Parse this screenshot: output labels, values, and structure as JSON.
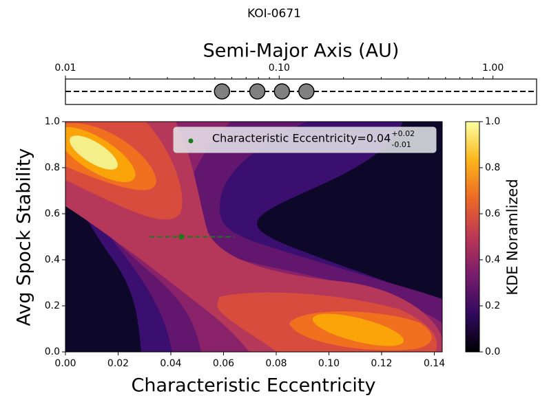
{
  "chart_data": [
    {
      "type": "scatter",
      "title": "KOI-0671",
      "xlabel": "Semi-Major Axis (AU)",
      "x": [
        0.054,
        0.079,
        0.103,
        0.134
      ],
      "color": "#808080",
      "log_x": true,
      "xlim": [
        0.01,
        1.6
      ],
      "xticks": [
        0.01,
        {
          "value": 0.1,
          "label": "0.10"
        },
        {
          "value": 1,
          "label": "1.00"
        }
      ],
      "xminorticks": [
        0.02,
        0.03,
        0.04,
        0.05,
        0.06,
        0.07,
        0.08,
        0.09,
        0.2,
        0.3,
        0.4,
        0.5,
        0.6,
        0.7,
        0.8,
        0.9
      ]
    },
    {
      "type": "contour",
      "xlabel": "Characteristic Eccentricity",
      "ylabel": "Avg Spock Stability",
      "xlim": [
        0,
        0.143
      ],
      "ylim": [
        0,
        1
      ],
      "xticks": [
        {
          "value": 0,
          "label": "0.00"
        },
        {
          "value": 0.02,
          "label": "0.02"
        },
        {
          "value": 0.04,
          "label": "0.04"
        },
        {
          "value": 0.06,
          "label": "0.06"
        },
        {
          "value": 0.08,
          "label": "0.08"
        },
        {
          "value": 0.1,
          "label": "0.10"
        },
        {
          "value": 0.12,
          "label": "0.12"
        },
        {
          "value": 0.14,
          "label": "0.14"
        }
      ],
      "yticks": [
        {
          "value": 0,
          "label": "0.0"
        },
        {
          "value": 0.2,
          "label": "0.2"
        },
        {
          "value": 0.4,
          "label": "0.4"
        },
        {
          "value": 0.6,
          "label": "0.6"
        },
        {
          "value": 0.8,
          "label": "0.8"
        },
        {
          "value": 1,
          "label": "1.0"
        }
      ],
      "background": "#0d0829",
      "levels": [
        0.1,
        0.2,
        0.3,
        0.4,
        0.5,
        0.6,
        0.7,
        0.8
      ],
      "level_colors": [
        "#3b0f6f",
        "#62166e",
        "#8a226a",
        "#b5375a",
        "#d84c3e",
        "#f17020",
        "#fba40a",
        "#f5ef8a"
      ],
      "series": [
        {
          "name": "Characteristic Eccentricity=0.04",
          "color": "#1a7a1a",
          "x": [
            0.044
          ],
          "values": [
            0.5
          ],
          "xerr_minus": [
            0.012
          ],
          "xerr_plus": [
            0.02
          ],
          "err_plus_label": "+0.02",
          "err_minus_label": "-0.01"
        }
      ],
      "colorbar": {
        "label": "KDE Noramlized",
        "lim": [
          0,
          1
        ],
        "ticks": [
          {
            "value": 0,
            "label": "0.0"
          },
          {
            "value": 0.2,
            "label": "0.2"
          },
          {
            "value": 0.4,
            "label": "0.4"
          },
          {
            "value": 0.6,
            "label": "0.6"
          },
          {
            "value": 0.8,
            "label": "0.8"
          },
          {
            "value": 1,
            "label": "1.0"
          }
        ],
        "colormap": [
          "#000004",
          "#320a5e",
          "#781c6d",
          "#bc3754",
          "#ed6925",
          "#fbb61a",
          "#fcffa4"
        ]
      }
    }
  ]
}
